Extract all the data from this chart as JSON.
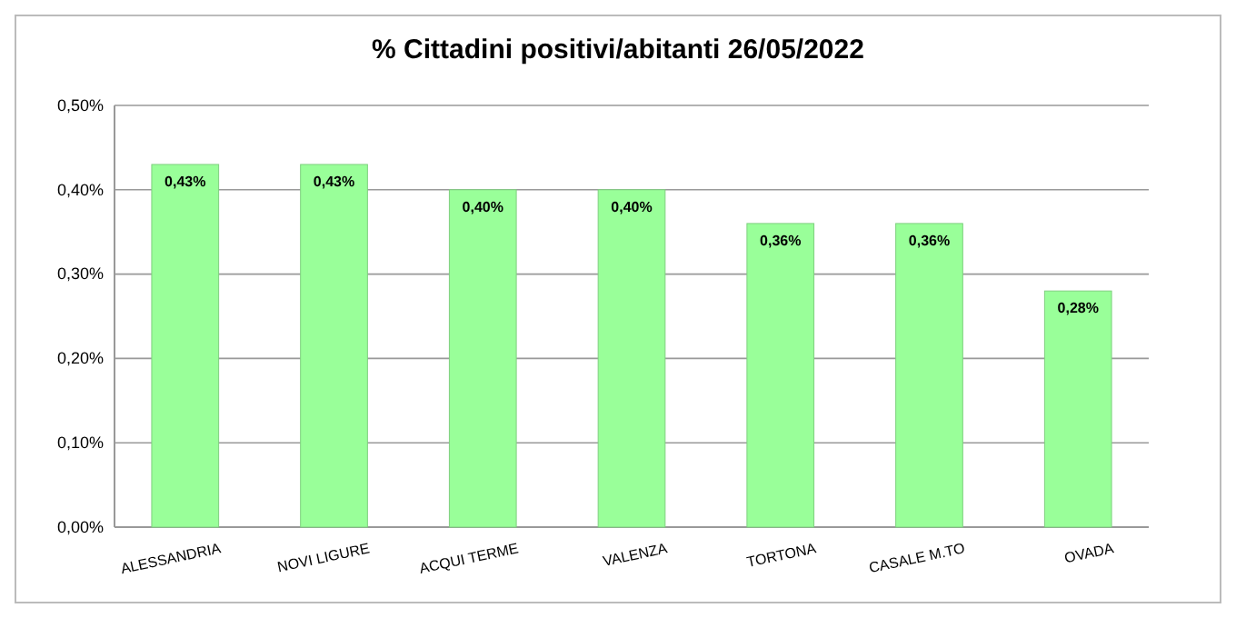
{
  "chart_data": {
    "type": "bar",
    "title": "% Cittadini positivi/abitanti 26/05/2022",
    "categories": [
      "ALESSANDRIA",
      "NOVI LIGURE",
      "ACQUI TERME",
      "VALENZA",
      "TORTONA",
      "CASALE M.TO",
      "OVADA"
    ],
    "values": [
      0.43,
      0.43,
      0.4,
      0.4,
      0.36,
      0.36,
      0.28
    ],
    "value_labels": [
      "0,43%",
      "0,43%",
      "0,40%",
      "0,40%",
      "0,36%",
      "0,36%",
      "0,28%"
    ],
    "color": "#99ff99",
    "ylim": [
      0,
      0.5
    ],
    "yticks": [
      {
        "value": 0,
        "label": "0,00%"
      },
      {
        "value": 0.1,
        "label": "0,10%"
      },
      {
        "value": 0.2,
        "label": "0,20%"
      },
      {
        "value": 0.3,
        "label": "0,30%"
      },
      {
        "value": 0.4,
        "label": "0,40%"
      },
      {
        "value": 0.5,
        "label": "0,50%"
      }
    ],
    "grid": true
  }
}
